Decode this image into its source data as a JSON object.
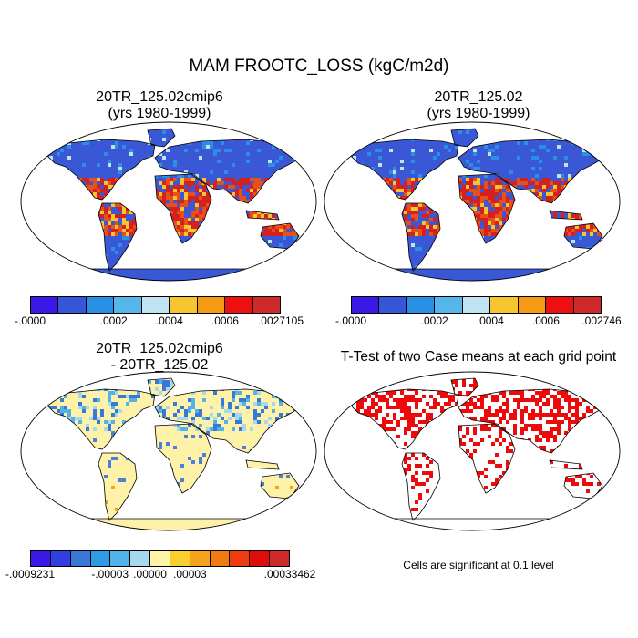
{
  "figure": {
    "title": "MAM FROOTC_LOSS (kgC/m2d)"
  },
  "panels": [
    {
      "title_line1": "20TR_125.02cmip6",
      "title_line2": "(yrs 1980-1999)"
    },
    {
      "title_line1": "20TR_125.02",
      "title_line2": "(yrs 1980-1999)"
    },
    {
      "title_line1": "20TR_125.02cmip6",
      "title_line2": "- 20TR_125.02"
    },
    {
      "title_line1": "T-Test of two Case means at each grid point",
      "note": "Cells are significant at 0.1 level"
    }
  ],
  "colorbars": [
    {
      "colors": [
        "#3b18e8",
        "#3556d8",
        "#2a8fe6",
        "#57b6e9",
        "#bfe3ef",
        "#f5c62e",
        "#f59a12",
        "#ee1010",
        "#cf2a2a"
      ],
      "labels": [
        "-.0000",
        ".0002",
        ".0004",
        ".0006",
        ".0027105"
      ]
    },
    {
      "colors": [
        "#3b18e8",
        "#3556d8",
        "#2a8fe6",
        "#57b6e9",
        "#bfe3ef",
        "#f5c62e",
        "#f59a12",
        "#ee1010",
        "#cf2a2a"
      ],
      "labels": [
        "-.0000",
        ".0002",
        ".0004",
        ".0006",
        ".002746"
      ]
    },
    {
      "colors": [
        "#3b18e8",
        "#3240e0",
        "#3a78d8",
        "#2f9be6",
        "#52b3ea",
        "#a6d8ef",
        "#fdf4a8",
        "#f7cf2f",
        "#f5a21d",
        "#f27a12",
        "#ee3c10",
        "#e00b0b",
        "#cf2a2a"
      ],
      "labels": [
        "-.0009231",
        "-.00003",
        ".00000",
        ".00003",
        ".00033462"
      ]
    }
  ],
  "map_colors": {
    "ocean": "#ffffff",
    "coast": "#000000",
    "p1_base": "#3a57d6",
    "p1_warm": "#e8501a",
    "p1_hot": "#d52020",
    "p3_base": "#fdf2a8",
    "p3_blue": "#4a7fdc",
    "p4_sig": "#ee0a0a"
  }
}
